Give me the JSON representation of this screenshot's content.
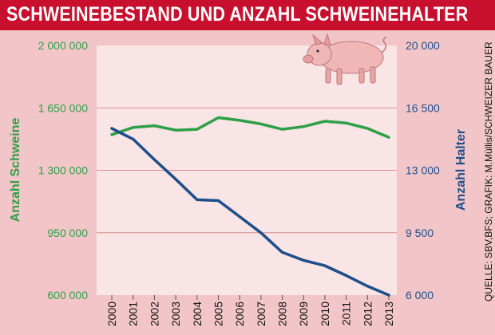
{
  "header": {
    "title": "SCHWEINEBESTAND UND ANZAHL SCHWEINEHALTER"
  },
  "source": "QUELLE: SBV,BFS; GRAFIK: M.Müllis/SCHWEIZER BAUER",
  "icons": {
    "pig": "pig-icon"
  },
  "colors": {
    "title_bg": "#c8102e",
    "plot_bg": "#f9e4e6",
    "grid": "#d98f8f",
    "pigs_line": "#2e9f47",
    "holders_line": "#1d4e89",
    "left_axis_text": "#2e9f47",
    "right_axis_text": "#1d4e89"
  },
  "chart_data": {
    "type": "line",
    "title": "SCHWEINEBESTAND UND ANZAHL SCHWEINEHALTER",
    "x": [
      "2000",
      "2001",
      "2002",
      "2003",
      "2004",
      "2005",
      "2006",
      "2007",
      "2008",
      "2009",
      "2010",
      "2011",
      "2012",
      "2013"
    ],
    "y_left": {
      "label": "Anzahl Schweine",
      "range": [
        600000,
        2000000
      ],
      "ticks": [
        "600 000",
        "950 000",
        "1 300 000",
        "1 650 000",
        "2 000 000"
      ],
      "tick_values": [
        600000,
        950000,
        1300000,
        1650000,
        2000000
      ]
    },
    "y_right": {
      "label": "Anzahl Halter",
      "range": [
        6000,
        20000
      ],
      "ticks": [
        "6 000",
        "9 500",
        "13 000",
        "16 500",
        "20 000"
      ],
      "tick_values": [
        6000,
        9500,
        13000,
        16500,
        20000
      ]
    },
    "grid": true,
    "series": [
      {
        "name": "Anzahl Schweine",
        "axis": "left",
        "color": "#2e9f47",
        "values": [
          1500000,
          1540000,
          1550000,
          1525000,
          1530000,
          1595000,
          1580000,
          1560000,
          1530000,
          1545000,
          1575000,
          1565000,
          1535000,
          1485000
        ]
      },
      {
        "name": "Anzahl Halter",
        "axis": "right",
        "color": "#1d4e89",
        "values": [
          15350,
          14750,
          13600,
          12500,
          11350,
          11300,
          10400,
          9500,
          8400,
          7950,
          7650,
          7100,
          6500,
          6000
        ]
      }
    ]
  }
}
